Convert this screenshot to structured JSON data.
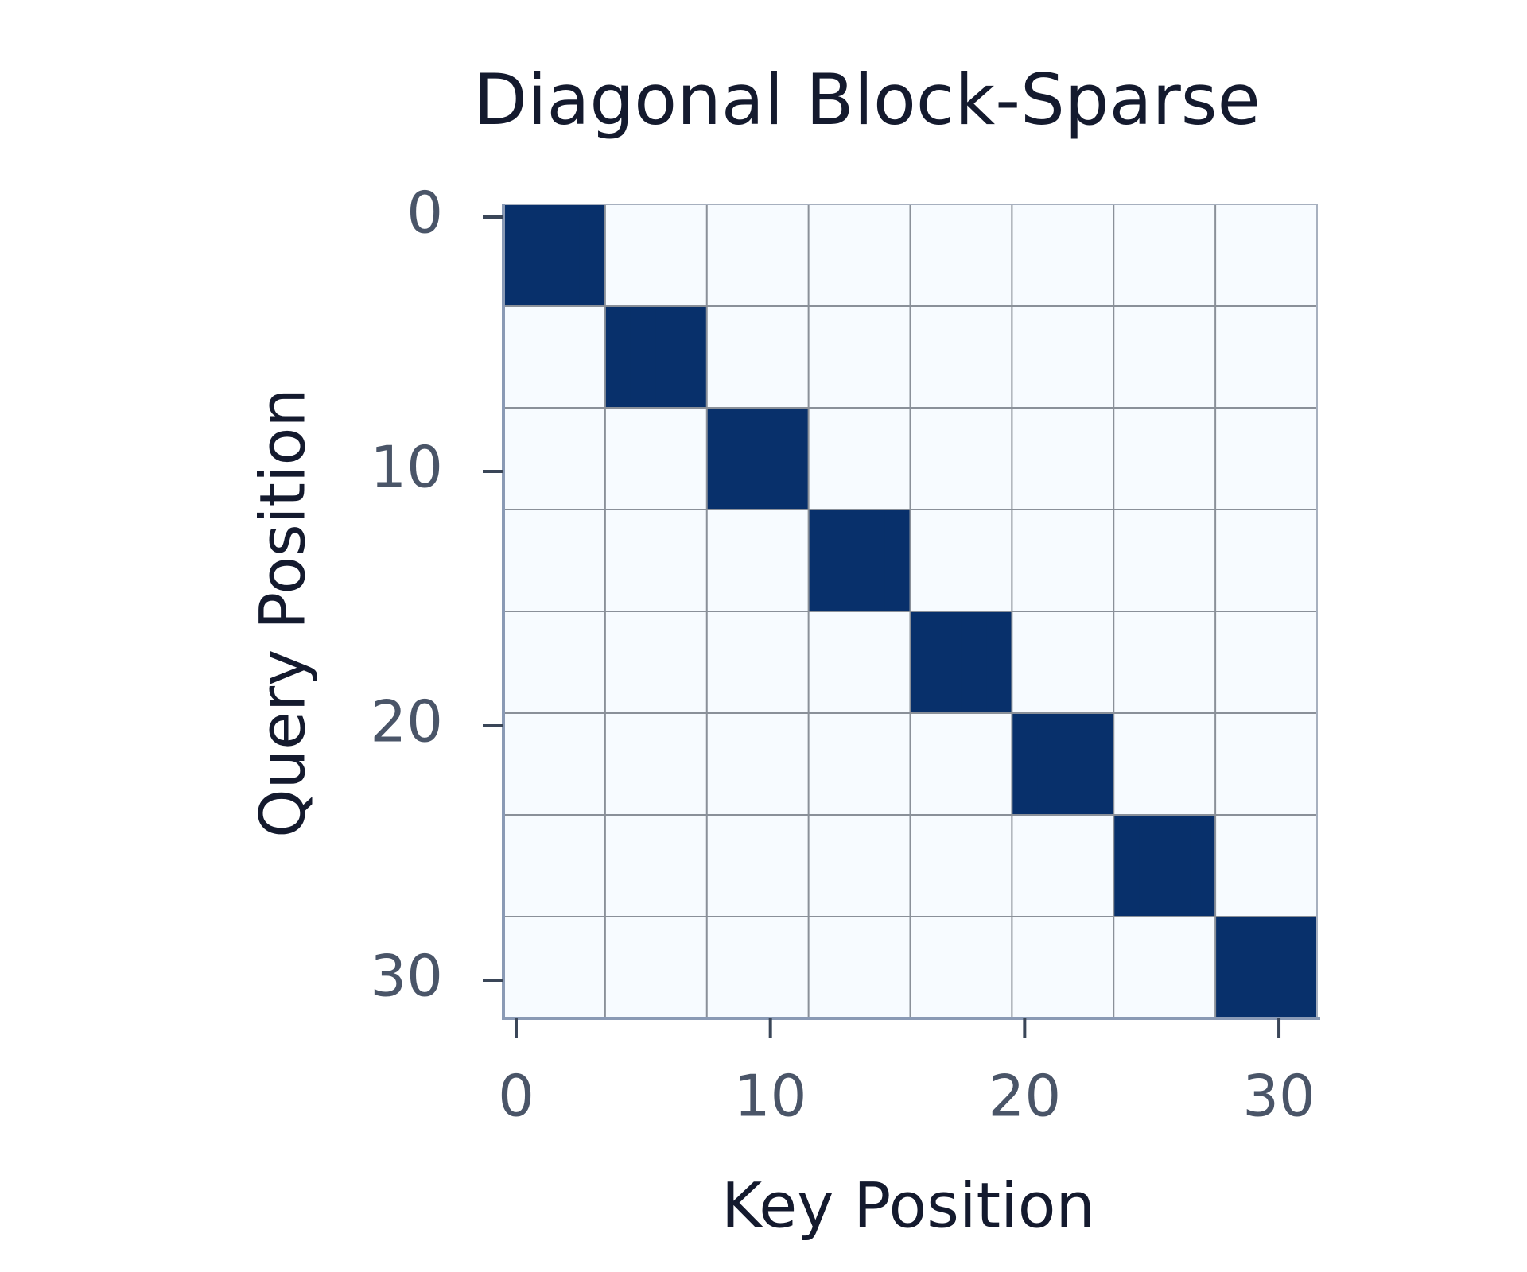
{
  "chart_data": {
    "type": "heatmap",
    "title": "Diagonal Block-Sparse",
    "x_label": "Key Position",
    "y_label": "Query Position",
    "xlim": [
      -0.5,
      31.5
    ],
    "ylim": [
      31.5,
      -0.5
    ],
    "xticks": [
      0,
      10,
      20,
      30
    ],
    "yticks": [
      0,
      10,
      20,
      30
    ],
    "colors": [
      "#f7fbff",
      "#08306b"
    ],
    "grid": true,
    "z": [
      [
        1,
        1,
        1,
        1,
        0,
        0,
        0,
        0,
        0,
        0,
        0,
        0,
        0,
        0,
        0,
        0,
        0,
        0,
        0,
        0,
        0,
        0,
        0,
        0,
        0,
        0,
        0,
        0,
        0,
        0,
        0,
        0
      ],
      [
        1,
        1,
        1,
        1,
        0,
        0,
        0,
        0,
        0,
        0,
        0,
        0,
        0,
        0,
        0,
        0,
        0,
        0,
        0,
        0,
        0,
        0,
        0,
        0,
        0,
        0,
        0,
        0,
        0,
        0,
        0,
        0
      ],
      [
        1,
        1,
        1,
        1,
        0,
        0,
        0,
        0,
        0,
        0,
        0,
        0,
        0,
        0,
        0,
        0,
        0,
        0,
        0,
        0,
        0,
        0,
        0,
        0,
        0,
        0,
        0,
        0,
        0,
        0,
        0,
        0
      ],
      [
        1,
        1,
        1,
        1,
        0,
        0,
        0,
        0,
        0,
        0,
        0,
        0,
        0,
        0,
        0,
        0,
        0,
        0,
        0,
        0,
        0,
        0,
        0,
        0,
        0,
        0,
        0,
        0,
        0,
        0,
        0,
        0
      ],
      [
        0,
        0,
        0,
        0,
        1,
        1,
        1,
        1,
        0,
        0,
        0,
        0,
        0,
        0,
        0,
        0,
        0,
        0,
        0,
        0,
        0,
        0,
        0,
        0,
        0,
        0,
        0,
        0,
        0,
        0,
        0,
        0
      ],
      [
        0,
        0,
        0,
        0,
        1,
        1,
        1,
        1,
        0,
        0,
        0,
        0,
        0,
        0,
        0,
        0,
        0,
        0,
        0,
        0,
        0,
        0,
        0,
        0,
        0,
        0,
        0,
        0,
        0,
        0,
        0,
        0
      ],
      [
        0,
        0,
        0,
        0,
        1,
        1,
        1,
        1,
        0,
        0,
        0,
        0,
        0,
        0,
        0,
        0,
        0,
        0,
        0,
        0,
        0,
        0,
        0,
        0,
        0,
        0,
        0,
        0,
        0,
        0,
        0,
        0
      ],
      [
        0,
        0,
        0,
        0,
        1,
        1,
        1,
        1,
        0,
        0,
        0,
        0,
        0,
        0,
        0,
        0,
        0,
        0,
        0,
        0,
        0,
        0,
        0,
        0,
        0,
        0,
        0,
        0,
        0,
        0,
        0,
        0
      ],
      [
        0,
        0,
        0,
        0,
        0,
        0,
        0,
        0,
        1,
        1,
        1,
        1,
        0,
        0,
        0,
        0,
        0,
        0,
        0,
        0,
        0,
        0,
        0,
        0,
        0,
        0,
        0,
        0,
        0,
        0,
        0,
        0
      ],
      [
        0,
        0,
        0,
        0,
        0,
        0,
        0,
        0,
        1,
        1,
        1,
        1,
        0,
        0,
        0,
        0,
        0,
        0,
        0,
        0,
        0,
        0,
        0,
        0,
        0,
        0,
        0,
        0,
        0,
        0,
        0,
        0
      ],
      [
        0,
        0,
        0,
        0,
        0,
        0,
        0,
        0,
        1,
        1,
        1,
        1,
        0,
        0,
        0,
        0,
        0,
        0,
        0,
        0,
        0,
        0,
        0,
        0,
        0,
        0,
        0,
        0,
        0,
        0,
        0,
        0
      ],
      [
        0,
        0,
        0,
        0,
        0,
        0,
        0,
        0,
        1,
        1,
        1,
        1,
        0,
        0,
        0,
        0,
        0,
        0,
        0,
        0,
        0,
        0,
        0,
        0,
        0,
        0,
        0,
        0,
        0,
        0,
        0,
        0
      ],
      [
        0,
        0,
        0,
        0,
        0,
        0,
        0,
        0,
        0,
        0,
        0,
        0,
        1,
        1,
        1,
        1,
        0,
        0,
        0,
        0,
        0,
        0,
        0,
        0,
        0,
        0,
        0,
        0,
        0,
        0,
        0,
        0
      ],
      [
        0,
        0,
        0,
        0,
        0,
        0,
        0,
        0,
        0,
        0,
        0,
        0,
        1,
        1,
        1,
        1,
        0,
        0,
        0,
        0,
        0,
        0,
        0,
        0,
        0,
        0,
        0,
        0,
        0,
        0,
        0,
        0
      ],
      [
        0,
        0,
        0,
        0,
        0,
        0,
        0,
        0,
        0,
        0,
        0,
        0,
        1,
        1,
        1,
        1,
        0,
        0,
        0,
        0,
        0,
        0,
        0,
        0,
        0,
        0,
        0,
        0,
        0,
        0,
        0,
        0
      ],
      [
        0,
        0,
        0,
        0,
        0,
        0,
        0,
        0,
        0,
        0,
        0,
        0,
        1,
        1,
        1,
        1,
        0,
        0,
        0,
        0,
        0,
        0,
        0,
        0,
        0,
        0,
        0,
        0,
        0,
        0,
        0,
        0
      ],
      [
        0,
        0,
        0,
        0,
        0,
        0,
        0,
        0,
        0,
        0,
        0,
        0,
        0,
        0,
        0,
        0,
        1,
        1,
        1,
        1,
        0,
        0,
        0,
        0,
        0,
        0,
        0,
        0,
        0,
        0,
        0,
        0
      ],
      [
        0,
        0,
        0,
        0,
        0,
        0,
        0,
        0,
        0,
        0,
        0,
        0,
        0,
        0,
        0,
        0,
        1,
        1,
        1,
        1,
        0,
        0,
        0,
        0,
        0,
        0,
        0,
        0,
        0,
        0,
        0,
        0
      ],
      [
        0,
        0,
        0,
        0,
        0,
        0,
        0,
        0,
        0,
        0,
        0,
        0,
        0,
        0,
        0,
        0,
        1,
        1,
        1,
        1,
        0,
        0,
        0,
        0,
        0,
        0,
        0,
        0,
        0,
        0,
        0,
        0
      ],
      [
        0,
        0,
        0,
        0,
        0,
        0,
        0,
        0,
        0,
        0,
        0,
        0,
        0,
        0,
        0,
        0,
        1,
        1,
        1,
        1,
        0,
        0,
        0,
        0,
        0,
        0,
        0,
        0,
        0,
        0,
        0,
        0
      ],
      [
        0,
        0,
        0,
        0,
        0,
        0,
        0,
        0,
        0,
        0,
        0,
        0,
        0,
        0,
        0,
        0,
        0,
        0,
        0,
        0,
        1,
        1,
        1,
        1,
        0,
        0,
        0,
        0,
        0,
        0,
        0,
        0
      ],
      [
        0,
        0,
        0,
        0,
        0,
        0,
        0,
        0,
        0,
        0,
        0,
        0,
        0,
        0,
        0,
        0,
        0,
        0,
        0,
        0,
        1,
        1,
        1,
        1,
        0,
        0,
        0,
        0,
        0,
        0,
        0,
        0
      ],
      [
        0,
        0,
        0,
        0,
        0,
        0,
        0,
        0,
        0,
        0,
        0,
        0,
        0,
        0,
        0,
        0,
        0,
        0,
        0,
        0,
        1,
        1,
        1,
        1,
        0,
        0,
        0,
        0,
        0,
        0,
        0,
        0
      ],
      [
        0,
        0,
        0,
        0,
        0,
        0,
        0,
        0,
        0,
        0,
        0,
        0,
        0,
        0,
        0,
        0,
        0,
        0,
        0,
        0,
        1,
        1,
        1,
        1,
        0,
        0,
        0,
        0,
        0,
        0,
        0,
        0
      ],
      [
        0,
        0,
        0,
        0,
        0,
        0,
        0,
        0,
        0,
        0,
        0,
        0,
        0,
        0,
        0,
        0,
        0,
        0,
        0,
        0,
        0,
        0,
        0,
        0,
        1,
        1,
        1,
        1,
        0,
        0,
        0,
        0
      ],
      [
        0,
        0,
        0,
        0,
        0,
        0,
        0,
        0,
        0,
        0,
        0,
        0,
        0,
        0,
        0,
        0,
        0,
        0,
        0,
        0,
        0,
        0,
        0,
        0,
        1,
        1,
        1,
        1,
        0,
        0,
        0,
        0
      ],
      [
        0,
        0,
        0,
        0,
        0,
        0,
        0,
        0,
        0,
        0,
        0,
        0,
        0,
        0,
        0,
        0,
        0,
        0,
        0,
        0,
        0,
        0,
        0,
        0,
        1,
        1,
        1,
        1,
        0,
        0,
        0,
        0
      ],
      [
        0,
        0,
        0,
        0,
        0,
        0,
        0,
        0,
        0,
        0,
        0,
        0,
        0,
        0,
        0,
        0,
        0,
        0,
        0,
        0,
        0,
        0,
        0,
        0,
        1,
        1,
        1,
        1,
        0,
        0,
        0,
        0
      ],
      [
        0,
        0,
        0,
        0,
        0,
        0,
        0,
        0,
        0,
        0,
        0,
        0,
        0,
        0,
        0,
        0,
        0,
        0,
        0,
        0,
        0,
        0,
        0,
        0,
        0,
        0,
        0,
        0,
        1,
        1,
        1,
        1
      ],
      [
        0,
        0,
        0,
        0,
        0,
        0,
        0,
        0,
        0,
        0,
        0,
        0,
        0,
        0,
        0,
        0,
        0,
        0,
        0,
        0,
        0,
        0,
        0,
        0,
        0,
        0,
        0,
        0,
        1,
        1,
        1,
        1
      ],
      [
        0,
        0,
        0,
        0,
        0,
        0,
        0,
        0,
        0,
        0,
        0,
        0,
        0,
        0,
        0,
        0,
        0,
        0,
        0,
        0,
        0,
        0,
        0,
        0,
        0,
        0,
        0,
        0,
        1,
        1,
        1,
        1
      ],
      [
        0,
        0,
        0,
        0,
        0,
        0,
        0,
        0,
        0,
        0,
        0,
        0,
        0,
        0,
        0,
        0,
        0,
        0,
        0,
        0,
        0,
        0,
        0,
        0,
        0,
        0,
        0,
        0,
        1,
        1,
        1,
        1
      ]
    ]
  }
}
